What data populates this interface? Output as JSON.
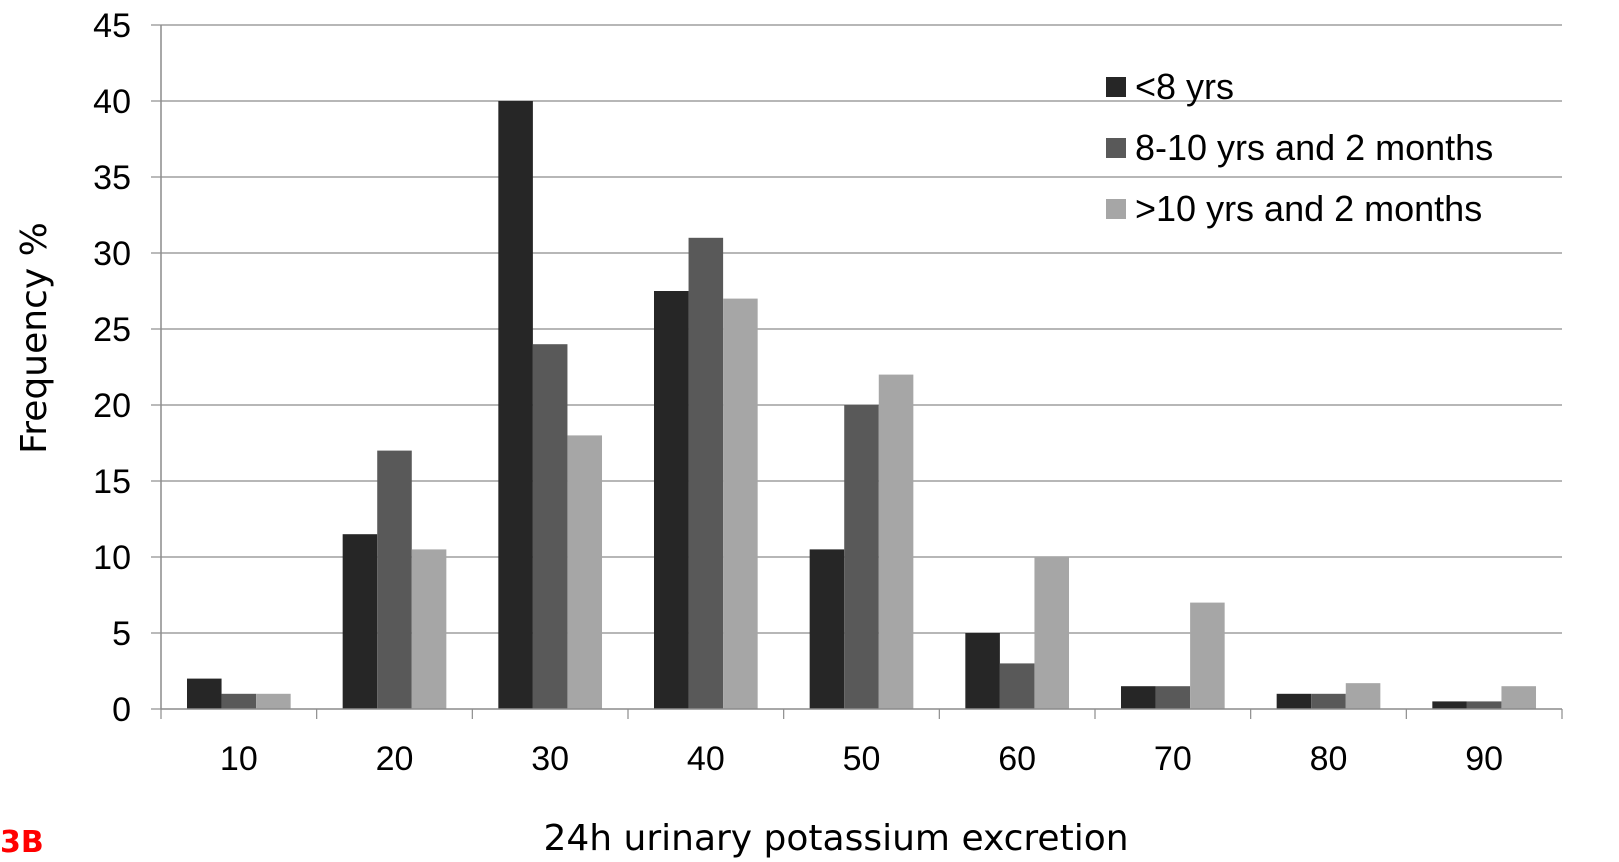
{
  "panel_label": "3B",
  "chart_data": {
    "type": "bar",
    "title": "",
    "xlabel": "24h urinary potassium excretion",
    "ylabel": "Frequency %",
    "ylim": [
      0,
      45
    ],
    "yticks": [
      0,
      5,
      10,
      15,
      20,
      25,
      30,
      35,
      40,
      45
    ],
    "grid": true,
    "legend_position": "top-right",
    "categories": [
      "10",
      "20",
      "30",
      "40",
      "50",
      "60",
      "70",
      "80",
      "90"
    ],
    "series": [
      {
        "name": "<8 yrs",
        "color": "#262626",
        "values": [
          2,
          11.5,
          40,
          27.5,
          10.5,
          5,
          1.5,
          1,
          0.5
        ]
      },
      {
        "name": "8-10 yrs and 2 months",
        "color": "#595959",
        "values": [
          1,
          17,
          24,
          31,
          20,
          3,
          1.5,
          1,
          0.5
        ]
      },
      {
        "name": ">10 yrs and 2 months",
        "color": "#a6a6a6",
        "values": [
          1,
          10.5,
          18,
          27,
          22,
          10,
          7,
          1.7,
          1.5
        ]
      }
    ]
  }
}
